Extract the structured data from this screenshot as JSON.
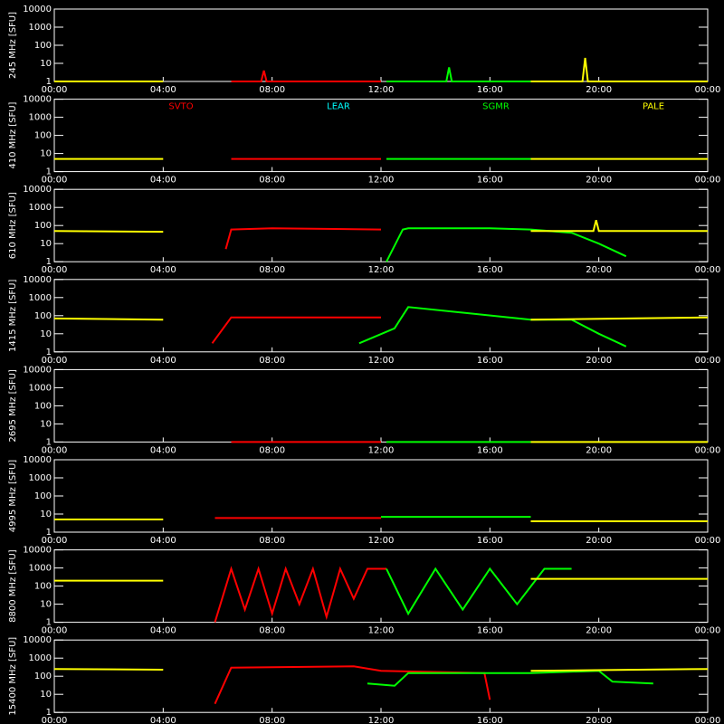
{
  "chart_data": [
    {
      "type": "line",
      "y_label": "245 MHz [SFU]",
      "log_scale": true,
      "xlim": [
        0,
        24
      ],
      "ylim": [
        1,
        10000
      ],
      "xticks": [
        {
          "value": 0,
          "label": "00:00"
        },
        {
          "value": 4,
          "label": "04:00"
        },
        {
          "value": 8,
          "label": "08:00"
        },
        {
          "value": 12,
          "label": "12:00"
        },
        {
          "value": 16,
          "label": "16:00"
        },
        {
          "value": 20,
          "label": "20:00"
        },
        {
          "value": 24,
          "label": "00:00"
        }
      ],
      "yticks": [
        1,
        10,
        100,
        1000,
        10000
      ],
      "series": [
        {
          "color": "#ffff00",
          "x": [
            0,
            4
          ],
          "values": [
            1,
            1
          ]
        },
        {
          "color": "#ff0000",
          "x": [
            6.5,
            7.6,
            7.7,
            7.8,
            12
          ],
          "values": [
            1,
            1,
            4,
            1,
            1
          ]
        },
        {
          "color": "#00ff00",
          "x": [
            12.2,
            14.4,
            14.5,
            14.6,
            17.5
          ],
          "values": [
            1,
            1,
            6,
            1,
            1
          ]
        },
        {
          "color": "#ffff00",
          "x": [
            17.5,
            19.4,
            19.5,
            19.6,
            24
          ],
          "values": [
            1,
            1,
            20,
            1,
            1
          ]
        }
      ]
    },
    {
      "type": "line",
      "y_label": "410 MHz [SFU]",
      "log_scale": true,
      "xlim": [
        0,
        24
      ],
      "ylim": [
        1,
        10000
      ],
      "xticks": [
        {
          "value": 0,
          "label": "00:00"
        },
        {
          "value": 4,
          "label": "04:00"
        },
        {
          "value": 8,
          "label": "08:00"
        },
        {
          "value": 12,
          "label": "12:00"
        },
        {
          "value": 16,
          "label": "16:00"
        },
        {
          "value": 20,
          "label": "20:00"
        },
        {
          "value": 24,
          "label": "00:00"
        }
      ],
      "yticks": [
        1,
        10,
        100,
        1000,
        10000
      ],
      "series": [
        {
          "name": "SVTO",
          "color": "#ff0000",
          "x": [
            6.5,
            12
          ],
          "values": [
            5,
            5
          ]
        },
        {
          "name": "LEAR",
          "color": "#00ffff",
          "x": [],
          "values": []
        },
        {
          "name": "SGMR",
          "color": "#00ff00",
          "x": [
            12.2,
            17.5
          ],
          "values": [
            5,
            5
          ]
        },
        {
          "name": "PALE",
          "color": "#ffff00",
          "x": [
            0,
            4,
            null,
            17.5,
            24
          ],
          "values": [
            5,
            5,
            null,
            5,
            5
          ]
        }
      ]
    },
    {
      "type": "line",
      "y_label": "610 MHz [SFU]",
      "log_scale": true,
      "xlim": [
        0,
        24
      ],
      "ylim": [
        1,
        10000
      ],
      "xticks": [
        {
          "value": 0,
          "label": "00:00"
        },
        {
          "value": 4,
          "label": "04:00"
        },
        {
          "value": 8,
          "label": "08:00"
        },
        {
          "value": 12,
          "label": "12:00"
        },
        {
          "value": 16,
          "label": "16:00"
        },
        {
          "value": 20,
          "label": "20:00"
        },
        {
          "value": 24,
          "label": "00:00"
        }
      ],
      "yticks": [
        1,
        10,
        100,
        1000,
        10000
      ],
      "series": [
        {
          "color": "#ffff00",
          "x": [
            0,
            4
          ],
          "values": [
            50,
            45
          ]
        },
        {
          "color": "#ff0000",
          "x": [
            6.3,
            6.5,
            8,
            12
          ],
          "values": [
            5,
            60,
            70,
            60
          ]
        },
        {
          "color": "#00ff00",
          "x": [
            12.2,
            12.8,
            13,
            16,
            17.5,
            19,
            20,
            21
          ],
          "values": [
            1,
            60,
            70,
            70,
            60,
            40,
            10,
            2
          ]
        },
        {
          "color": "#ffff00",
          "x": [
            17.5,
            19.8,
            19.9,
            20,
            24
          ],
          "values": [
            50,
            50,
            200,
            50,
            50
          ]
        }
      ]
    },
    {
      "type": "line",
      "y_label": "1415 MHz [SFU]",
      "log_scale": true,
      "xlim": [
        0,
        24
      ],
      "ylim": [
        1,
        10000
      ],
      "xticks": [
        {
          "value": 0,
          "label": "00:00"
        },
        {
          "value": 4,
          "label": "04:00"
        },
        {
          "value": 8,
          "label": "08:00"
        },
        {
          "value": 12,
          "label": "12:00"
        },
        {
          "value": 16,
          "label": "16:00"
        },
        {
          "value": 20,
          "label": "20:00"
        },
        {
          "value": 24,
          "label": "00:00"
        }
      ],
      "yticks": [
        1,
        10,
        100,
        1000,
        10000
      ],
      "series": [
        {
          "color": "#ffff00",
          "x": [
            0,
            4
          ],
          "values": [
            70,
            60
          ]
        },
        {
          "color": "#ff0000",
          "x": [
            5.8,
            6.5,
            12
          ],
          "values": [
            3,
            80,
            80
          ]
        },
        {
          "color": "#00ff00",
          "x": [
            11.2,
            12.5,
            12.7,
            13,
            17.5,
            19,
            20,
            21
          ],
          "values": [
            3,
            20,
            60,
            300,
            60,
            60,
            10,
            2
          ]
        },
        {
          "color": "#ffff00",
          "x": [
            17.5,
            24
          ],
          "values": [
            60,
            80
          ]
        }
      ]
    },
    {
      "type": "line",
      "y_label": "2695 MHz [SFU]",
      "log_scale": true,
      "xlim": [
        0,
        24
      ],
      "ylim": [
        1,
        10000
      ],
      "xticks": [
        {
          "value": 0,
          "label": "00:00"
        },
        {
          "value": 4,
          "label": "04:00"
        },
        {
          "value": 8,
          "label": "08:00"
        },
        {
          "value": 12,
          "label": "12:00"
        },
        {
          "value": 16,
          "label": "16:00"
        },
        {
          "value": 20,
          "label": "20:00"
        },
        {
          "value": 24,
          "label": "00:00"
        }
      ],
      "yticks": [
        1,
        10,
        100,
        1000,
        10000
      ],
      "series": [
        {
          "color": "#ff0000",
          "x": [
            6.5,
            12
          ],
          "values": [
            1,
            1
          ]
        },
        {
          "color": "#00ff00",
          "x": [
            12.2,
            17.5
          ],
          "values": [
            1,
            1
          ]
        },
        {
          "color": "#ffff00",
          "x": [
            17.5,
            24
          ],
          "values": [
            1,
            1
          ]
        }
      ]
    },
    {
      "type": "line",
      "y_label": "4995 MHz [SFU]",
      "log_scale": true,
      "xlim": [
        0,
        24
      ],
      "ylim": [
        1,
        10000
      ],
      "xticks": [
        {
          "value": 0,
          "label": "00:00"
        },
        {
          "value": 4,
          "label": "04:00"
        },
        {
          "value": 8,
          "label": "08:00"
        },
        {
          "value": 12,
          "label": "12:00"
        },
        {
          "value": 16,
          "label": "16:00"
        },
        {
          "value": 20,
          "label": "20:00"
        },
        {
          "value": 24,
          "label": "00:00"
        }
      ],
      "yticks": [
        1,
        10,
        100,
        1000,
        10000
      ],
      "series": [
        {
          "color": "#ffff00",
          "x": [
            0,
            4
          ],
          "values": [
            5,
            5
          ]
        },
        {
          "color": "#ff0000",
          "x": [
            5.9,
            12
          ],
          "values": [
            6,
            6
          ]
        },
        {
          "color": "#00ff00",
          "x": [
            12,
            17.5
          ],
          "values": [
            7,
            7
          ]
        },
        {
          "color": "#ffff00",
          "x": [
            17.5,
            24
          ],
          "values": [
            4,
            4
          ]
        }
      ]
    },
    {
      "type": "line",
      "y_label": "8800 MHz [SFU]",
      "log_scale": true,
      "xlim": [
        0,
        24
      ],
      "ylim": [
        1,
        10000
      ],
      "xticks": [
        {
          "value": 0,
          "label": "00:00"
        },
        {
          "value": 4,
          "label": "04:00"
        },
        {
          "value": 8,
          "label": "08:00"
        },
        {
          "value": 12,
          "label": "12:00"
        },
        {
          "value": 16,
          "label": "16:00"
        },
        {
          "value": 20,
          "label": "20:00"
        },
        {
          "value": 24,
          "label": "00:00"
        }
      ],
      "yticks": [
        1,
        10,
        100,
        1000,
        10000
      ],
      "series": [
        {
          "color": "#ffff00",
          "x": [
            0,
            4
          ],
          "values": [
            200,
            200
          ]
        },
        {
          "color": "#ff0000",
          "x": [
            5.9,
            6.5,
            7,
            7.5,
            8,
            8.5,
            9,
            9.5,
            10,
            10.5,
            11,
            11.5,
            12.2
          ],
          "values": [
            1,
            900,
            5,
            900,
            3,
            900,
            10,
            900,
            2,
            900,
            20,
            900,
            900
          ]
        },
        {
          "color": "#00ff00",
          "x": [
            12.2,
            13,
            14,
            15,
            16,
            17,
            18,
            19
          ],
          "values": [
            900,
            3,
            900,
            5,
            900,
            10,
            900,
            900
          ]
        },
        {
          "color": "#ffff00",
          "x": [
            17.5,
            24
          ],
          "values": [
            250,
            250
          ]
        }
      ]
    },
    {
      "type": "line",
      "y_label": "15400 MHz [SFU]",
      "log_scale": true,
      "xlim": [
        0,
        24
      ],
      "ylim": [
        1,
        10000
      ],
      "xticks": [
        {
          "value": 0,
          "label": "00:00"
        },
        {
          "value": 4,
          "label": "04:00"
        },
        {
          "value": 8,
          "label": "08:00"
        },
        {
          "value": 12,
          "label": "12:00"
        },
        {
          "value": 16,
          "label": "16:00"
        },
        {
          "value": 20,
          "label": "20:00"
        },
        {
          "value": 24,
          "label": "00:00"
        }
      ],
      "yticks": [
        1,
        10,
        100,
        1000,
        10000
      ],
      "series": [
        {
          "color": "#ffff00",
          "x": [
            0,
            4
          ],
          "values": [
            250,
            230
          ]
        },
        {
          "color": "#ff0000",
          "x": [
            5.9,
            6.5,
            11,
            12,
            15.8,
            16
          ],
          "values": [
            3,
            300,
            350,
            200,
            150,
            5
          ]
        },
        {
          "color": "#00ff00",
          "x": [
            11.5,
            12.5,
            13,
            17.5,
            20,
            20.5,
            22
          ],
          "values": [
            40,
            30,
            150,
            150,
            200,
            50,
            40
          ]
        },
        {
          "color": "#ffff00",
          "x": [
            17.5,
            24
          ],
          "values": [
            200,
            250
          ]
        }
      ]
    }
  ]
}
